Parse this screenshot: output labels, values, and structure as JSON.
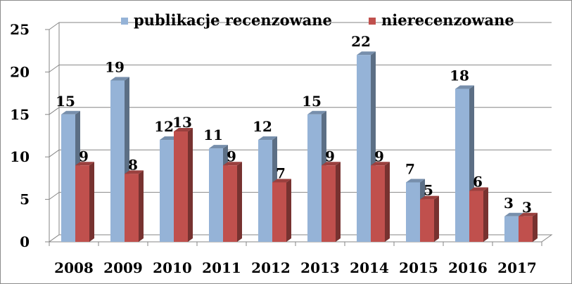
{
  "chart_data": {
    "type": "bar",
    "categories": [
      "2008",
      "2009",
      "2010",
      "2011",
      "2012",
      "2013",
      "2014",
      "2015",
      "2016",
      "2017"
    ],
    "series": [
      {
        "name": "publikacje recenzowane",
        "values": [
          15,
          19,
          12,
          11,
          12,
          15,
          22,
          7,
          18,
          3
        ],
        "color": "#95B3D7"
      },
      {
        "name": "nierecenzowane",
        "values": [
          9,
          8,
          13,
          9,
          7,
          9,
          9,
          5,
          6,
          3
        ],
        "color": "#C0504D"
      }
    ],
    "yticks": [
      0,
      5,
      10,
      15,
      20,
      25
    ],
    "ylim": [
      0,
      25
    ],
    "grid": true,
    "legend": "top",
    "three_d": true
  }
}
